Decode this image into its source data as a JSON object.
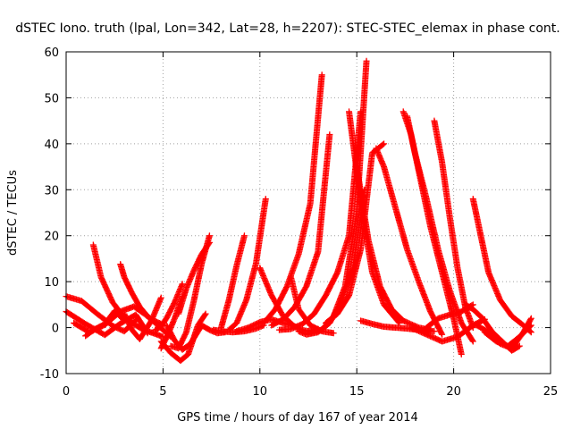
{
  "chart_data": {
    "type": "scatter",
    "title": "dSTEC Iono. truth (lpal, Lon=342, Lat=28, h=2207): STEC-STEC_elemax in phase cont.",
    "xlabel": "GPS time / hours of day 167 of year 2014",
    "ylabel": "dSTEC  / TECUs",
    "xlim": [
      0,
      25
    ],
    "ylim": [
      -10,
      60
    ],
    "xticks": [
      0,
      5,
      10,
      15,
      20,
      25
    ],
    "yticks": [
      -10,
      0,
      10,
      20,
      30,
      40,
      50,
      60
    ],
    "grid": true,
    "marker": "plus",
    "color": "#ff0000",
    "series": [
      {
        "x": [
          0.0,
          1.0,
          2.0,
          2.8,
          3.6,
          4.2
        ],
        "y": [
          3.5,
          0.8,
          -1.6,
          0.9,
          2.8,
          -1.2
        ]
      },
      {
        "x": [
          0.0,
          0.8,
          1.6,
          2.4,
          3.0,
          3.6
        ],
        "y": [
          6.8,
          5.8,
          3.0,
          0.4,
          -0.8,
          1.6
        ]
      },
      {
        "x": [
          0.4,
          1.2,
          2.0,
          2.8,
          3.5,
          4.2,
          5.0,
          5.4
        ],
        "y": [
          1.0,
          -1.0,
          0.6,
          3.5,
          4.6,
          2.5,
          -0.5,
          -2.0
        ]
      },
      {
        "x": [
          1.4,
          1.8,
          2.4,
          3.0,
          3.6,
          4.0,
          4.5,
          5.0
        ],
        "y": [
          18.0,
          11.0,
          5.5,
          2.2,
          0.5,
          -0.5,
          -1.2,
          -2.0
        ]
      },
      {
        "x": [
          2.8,
          3.0,
          3.4,
          3.8,
          4.3,
          5.0
        ],
        "y": [
          13.8,
          11.0,
          7.5,
          4.5,
          2.0,
          0.6
        ]
      },
      {
        "x": [
          3.0,
          3.4,
          3.8,
          4.4,
          4.9
        ],
        "y": [
          3.0,
          -0.5,
          -2.5,
          1.5,
          6.5
        ]
      },
      {
        "x": [
          1.0,
          1.5,
          2.0,
          2.5,
          3.0
        ],
        "y": [
          -1.8,
          -0.3,
          0.8,
          3.6,
          1.6
        ]
      },
      {
        "x": [
          4.9,
          5.4,
          5.9,
          6.3,
          6.8,
          7.2
        ],
        "y": [
          -3.0,
          -5.5,
          -7.2,
          -5.8,
          0.5,
          3.0
        ]
      },
      {
        "x": [
          5.2,
          5.6,
          6.0,
          6.4,
          7.0,
          7.4,
          7.8,
          8.2
        ],
        "y": [
          0.4,
          -2.8,
          -4.8,
          -3.6,
          0.5,
          -0.5,
          -1.2,
          -1.0
        ]
      },
      {
        "x": [
          5.4,
          5.8,
          6.2,
          6.6,
          7.0,
          7.4
        ],
        "y": [
          -4.0,
          -4.5,
          -1.0,
          6.0,
          14.0,
          20.0
        ]
      },
      {
        "x": [
          5.8,
          6.2,
          6.6,
          7.0,
          7.4
        ],
        "y": [
          3.0,
          8.5,
          12.5,
          16.0,
          18.5
        ]
      },
      {
        "x": [
          4.6,
          4.9,
          5.2,
          5.6,
          6.0
        ],
        "y": [
          -0.5,
          0.2,
          2.2,
          5.5,
          9.5
        ]
      },
      {
        "x": [
          4.9,
          5.2,
          5.6,
          6.0
        ],
        "y": [
          -4.5,
          -2.0,
          2.0,
          6.8
        ]
      },
      {
        "x": [
          7.6,
          8.0,
          8.6,
          9.2,
          9.8,
          10.2
        ],
        "y": [
          -0.5,
          -0.8,
          -1.0,
          -0.8,
          -0.2,
          0.5
        ]
      },
      {
        "x": [
          8.0,
          8.4,
          8.8,
          9.2
        ],
        "y": [
          0.0,
          6.0,
          13.5,
          20.0
        ]
      },
      {
        "x": [
          8.4,
          8.8,
          9.3,
          9.8,
          10.3
        ],
        "y": [
          -0.5,
          1.0,
          6.0,
          14.0,
          28.0
        ]
      },
      {
        "x": [
          8.8,
          9.4,
          10.0,
          10.6,
          11.2,
          12.0
        ],
        "y": [
          -0.8,
          0.0,
          1.2,
          1.8,
          1.0,
          0.0
        ]
      },
      {
        "x": [
          10.0,
          10.6,
          11.2,
          11.8,
          12.4,
          13.0
        ],
        "y": [
          13.0,
          7.0,
          2.5,
          0.2,
          -0.8,
          -0.3
        ]
      },
      {
        "x": [
          10.2,
          10.8,
          11.4,
          12.0,
          12.6,
          13.2
        ],
        "y": [
          1.0,
          4.0,
          9.0,
          16.0,
          27.0,
          55.0
        ]
      },
      {
        "x": [
          10.6,
          11.2,
          11.8,
          12.4,
          13.0,
          13.6
        ],
        "y": [
          0.5,
          1.8,
          4.5,
          9.0,
          16.5,
          42.0
        ]
      },
      {
        "x": [
          11.0,
          11.6,
          12.2,
          12.8,
          13.4,
          14.0,
          14.6,
          15.2
        ],
        "y": [
          -0.5,
          -0.3,
          0.8,
          3.0,
          7.0,
          12.0,
          20.0,
          47.0
        ]
      },
      {
        "x": [
          11.6,
          12.0,
          12.6,
          13.2,
          13.8
        ],
        "y": [
          11.0,
          4.0,
          0.5,
          -0.8,
          -1.2
        ]
      },
      {
        "x": [
          12.0,
          12.4,
          13.0,
          13.6,
          14.2,
          14.8,
          15.4
        ],
        "y": [
          -0.8,
          -1.5,
          -1.0,
          1.0,
          5.5,
          13.0,
          30.0
        ]
      },
      {
        "x": [
          12.6,
          13.2,
          13.8,
          14.4,
          15.0,
          15.5
        ],
        "y": [
          -1.2,
          -0.5,
          2.5,
          9.0,
          25.0,
          58.0
        ]
      },
      {
        "x": [
          13.4,
          14.0,
          14.6,
          15.2,
          15.8,
          16.4
        ],
        "y": [
          1.0,
          3.0,
          7.0,
          17.0,
          38.0,
          40.0
        ]
      },
      {
        "x": [
          14.6,
          15.0,
          15.4,
          15.8,
          16.4,
          17.2
        ],
        "y": [
          47.0,
          34.0,
          22.0,
          12.0,
          5.0,
          1.0
        ]
      },
      {
        "x": [
          15.0,
          15.6,
          16.2,
          16.8,
          17.4,
          18.2,
          18.8
        ],
        "y": [
          35.0,
          19.0,
          9.0,
          4.0,
          1.5,
          0.0,
          -0.5
        ]
      },
      {
        "x": [
          15.2,
          15.8,
          16.4,
          17.0,
          17.6,
          18.2,
          19.0
        ],
        "y": [
          1.5,
          0.8,
          0.2,
          0.0,
          -0.2,
          -0.5,
          -0.8
        ]
      },
      {
        "x": [
          16.0,
          16.4,
          17.0,
          17.6,
          18.2,
          18.8,
          19.4
        ],
        "y": [
          39.0,
          35.0,
          26.0,
          17.0,
          10.0,
          3.5,
          -1.5
        ]
      },
      {
        "x": [
          17.4,
          17.8,
          18.2,
          18.8,
          19.4,
          20.0,
          20.4
        ],
        "y": [
          47.0,
          42.0,
          34.0,
          22.0,
          12.0,
          2.0,
          -5.8
        ]
      },
      {
        "x": [
          17.6,
          18.0,
          18.6,
          19.2,
          19.8,
          20.4,
          21.0
        ],
        "y": [
          46.0,
          38.0,
          28.0,
          17.0,
          8.0,
          1.0,
          -3.0
        ]
      },
      {
        "x": [
          19.0,
          19.4,
          19.8,
          20.2,
          20.6,
          21.0
        ],
        "y": [
          45.0,
          36.0,
          24.0,
          13.0,
          4.5,
          0.0
        ]
      },
      {
        "x": [
          17.8,
          18.6,
          19.4,
          20.2,
          21.0,
          21.6
        ],
        "y": [
          0.0,
          -1.5,
          -3.0,
          -2.0,
          0.5,
          1.8
        ]
      },
      {
        "x": [
          18.6,
          19.2,
          19.8,
          20.4,
          21.0
        ],
        "y": [
          0.0,
          2.0,
          2.8,
          3.5,
          5.0
        ]
      },
      {
        "x": [
          20.6,
          21.0,
          21.5,
          22.0,
          22.5,
          23.0,
          23.4
        ],
        "y": [
          5.0,
          4.0,
          2.0,
          -1.0,
          -3.0,
          -5.0,
          -4.0
        ]
      },
      {
        "x": [
          21.0,
          21.4,
          21.8,
          22.4,
          23.0,
          23.6,
          24.0
        ],
        "y": [
          28.0,
          20.0,
          12.0,
          6.0,
          2.5,
          0.5,
          -1.0
        ]
      },
      {
        "x": [
          21.2,
          21.8,
          22.4,
          23.0,
          23.6,
          24.0
        ],
        "y": [
          0.5,
          -1.0,
          -3.5,
          -4.5,
          -1.0,
          2.0
        ]
      },
      {
        "x": [
          21.6,
          22.2,
          22.8,
          23.4,
          24.0
        ],
        "y": [
          -1.0,
          -3.0,
          -4.0,
          -2.0,
          0.5
        ]
      }
    ]
  }
}
